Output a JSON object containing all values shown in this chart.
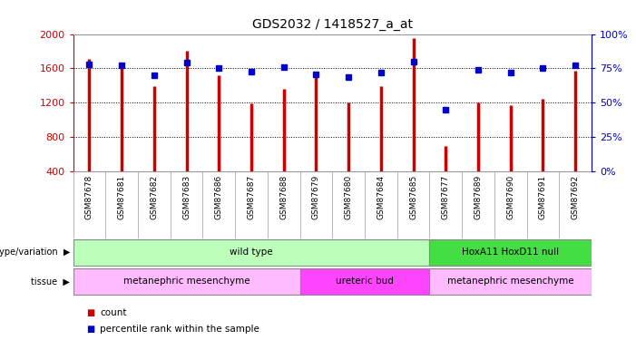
{
  "title": "GDS2032 / 1418527_a_at",
  "samples": [
    "GSM87678",
    "GSM87681",
    "GSM87682",
    "GSM87683",
    "GSM87686",
    "GSM87687",
    "GSM87688",
    "GSM87679",
    "GSM87680",
    "GSM87684",
    "GSM87685",
    "GSM87677",
    "GSM87689",
    "GSM87690",
    "GSM87691",
    "GSM87692"
  ],
  "counts": [
    1710,
    1660,
    1390,
    1800,
    1520,
    1190,
    1360,
    1530,
    1200,
    1390,
    1950,
    700,
    1200,
    1170,
    1250,
    1570
  ],
  "percentiles": [
    78,
    77,
    70,
    79,
    75,
    73,
    76,
    71,
    69,
    72,
    80,
    45,
    74,
    72,
    75,
    77
  ],
  "ylim_left": [
    400,
    2000
  ],
  "ylim_right": [
    0,
    100
  ],
  "yticks_left": [
    400,
    800,
    1200,
    1600,
    2000
  ],
  "yticks_right": [
    0,
    25,
    50,
    75,
    100
  ],
  "bar_color": "#cc0000",
  "dot_color": "#0000cc",
  "grid_color": "#000000",
  "background_color": "#ffffff",
  "plot_bg_color": "#ffffff",
  "xlabel_bg_color": "#cccccc",
  "genotype_groups": [
    {
      "label": "wild type",
      "start": 0,
      "end": 11,
      "color": "#bbffbb"
    },
    {
      "label": "HoxA11 HoxD11 null",
      "start": 11,
      "end": 16,
      "color": "#44dd44"
    }
  ],
  "tissue_groups": [
    {
      "label": "metanephric mesenchyme",
      "start": 0,
      "end": 7,
      "color": "#ffbbff"
    },
    {
      "label": "ureteric bud",
      "start": 7,
      "end": 11,
      "color": "#ff44ff"
    },
    {
      "label": "metanephric mesenchyme",
      "start": 11,
      "end": 16,
      "color": "#ffbbff"
    }
  ],
  "legend_items": [
    {
      "label": "count",
      "color": "#cc0000"
    },
    {
      "label": "percentile rank within the sample",
      "color": "#0000cc"
    }
  ]
}
